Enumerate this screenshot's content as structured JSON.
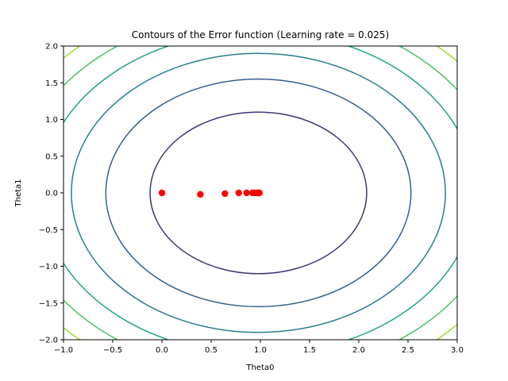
{
  "chart_data": {
    "type": "scatter",
    "title": "Contours of the Error function (Learning rate = 0.025)",
    "xlabel": "Theta0",
    "ylabel": "Theta1",
    "xlim": [
      -1.0,
      3.0
    ],
    "ylim": [
      -2.0,
      2.0
    ],
    "x_ticks": [
      -1.0,
      -0.5,
      0.0,
      0.5,
      1.0,
      1.5,
      2.0,
      2.5,
      3.0
    ],
    "x_tick_labels": [
      "−1.0",
      "−0.5",
      "0.0",
      "0.5",
      "1.0",
      "1.5",
      "2.0",
      "2.5",
      "3.0"
    ],
    "y_ticks": [
      -2.0,
      -1.5,
      -1.0,
      -0.5,
      0.0,
      0.5,
      1.0,
      1.5,
      2.0
    ],
    "y_tick_labels": [
      "−2.0",
      "−1.5",
      "−1.0",
      "−0.5",
      "0.0",
      "0.5",
      "1.0",
      "1.5",
      "2.0"
    ],
    "grid": false,
    "contour_center": [
      0.98,
      0.0
    ],
    "contours": [
      {
        "rx": 1.1,
        "ry": 1.1,
        "color": "#3e3574"
      },
      {
        "rx": 1.55,
        "ry": 1.55,
        "color": "#34618d"
      },
      {
        "rx": 1.9,
        "ry": 1.9,
        "color": "#287d8e"
      },
      {
        "rx": 2.2,
        "ry": 2.2,
        "color": "#21a585"
      },
      {
        "rx": 2.46,
        "ry": 2.46,
        "color": "#4ac16d"
      },
      {
        "rx": 2.7,
        "ry": 2.7,
        "color": "#a0da39"
      }
    ],
    "series": [
      {
        "color": "#ff0000",
        "points": [
          {
            "x": 0.0,
            "y": 0.0
          },
          {
            "x": 0.39,
            "y": -0.02
          },
          {
            "x": 0.64,
            "y": -0.01
          },
          {
            "x": 0.78,
            "y": 0.0
          },
          {
            "x": 0.86,
            "y": 0.0
          },
          {
            "x": 0.92,
            "y": 0.0
          },
          {
            "x": 0.95,
            "y": 0.0
          },
          {
            "x": 0.97,
            "y": 0.0
          },
          {
            "x": 0.98,
            "y": 0.0
          },
          {
            "x": 0.99,
            "y": 0.0
          }
        ]
      }
    ]
  }
}
